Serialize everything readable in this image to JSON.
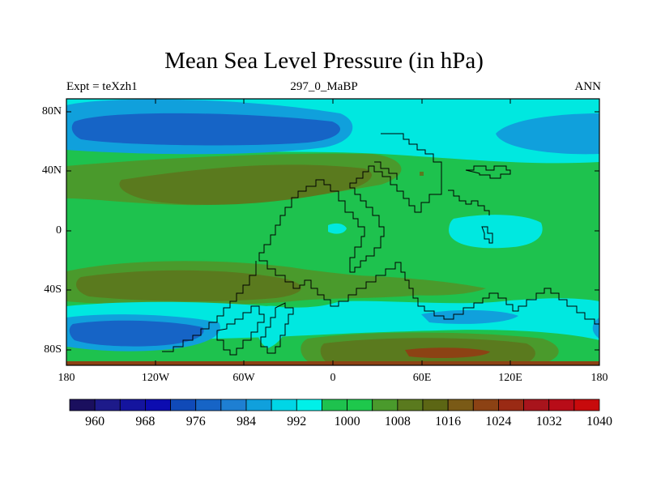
{
  "title": "Mean Sea Level Pressure (in hPa)",
  "subtitle": {
    "left": "Expt = teXzh1",
    "center": "297_0_MaBP",
    "right": "ANN"
  },
  "axes": {
    "lat_labels": [
      "80N",
      "40N",
      "0",
      "40S",
      "80S"
    ],
    "lon_labels": [
      "180",
      "120W",
      "60W",
      "0",
      "60E",
      "120E",
      "180"
    ]
  },
  "colorbar": {
    "labels": [
      "960",
      "968",
      "976",
      "984",
      "992",
      "1000",
      "1008",
      "1016",
      "1024",
      "1032",
      "1040"
    ],
    "colors": [
      "#1a0f5e",
      "#1d1a8a",
      "#14149e",
      "#0c0cb0",
      "#104ab8",
      "#1664c6",
      "#1e7fd2",
      "#10a0dc",
      "#00d6e6",
      "#00f0e8",
      "#1ec24e",
      "#1ec84c",
      "#4a9a2c",
      "#5a7a1e",
      "#5c6614",
      "#7a5a16",
      "#8c4214",
      "#9a2a14",
      "#a8141c",
      "#b80c18",
      "#c80a0c"
    ]
  },
  "colors": {
    "land_low": "#1ec24e",
    "land_mid": "#4a9a2c",
    "high": "#5a7a1e",
    "ocean_low": "#00e8e0",
    "low": "#10a0dc",
    "very_low": "#1664c6",
    "extreme_high": "#8c4214"
  }
}
